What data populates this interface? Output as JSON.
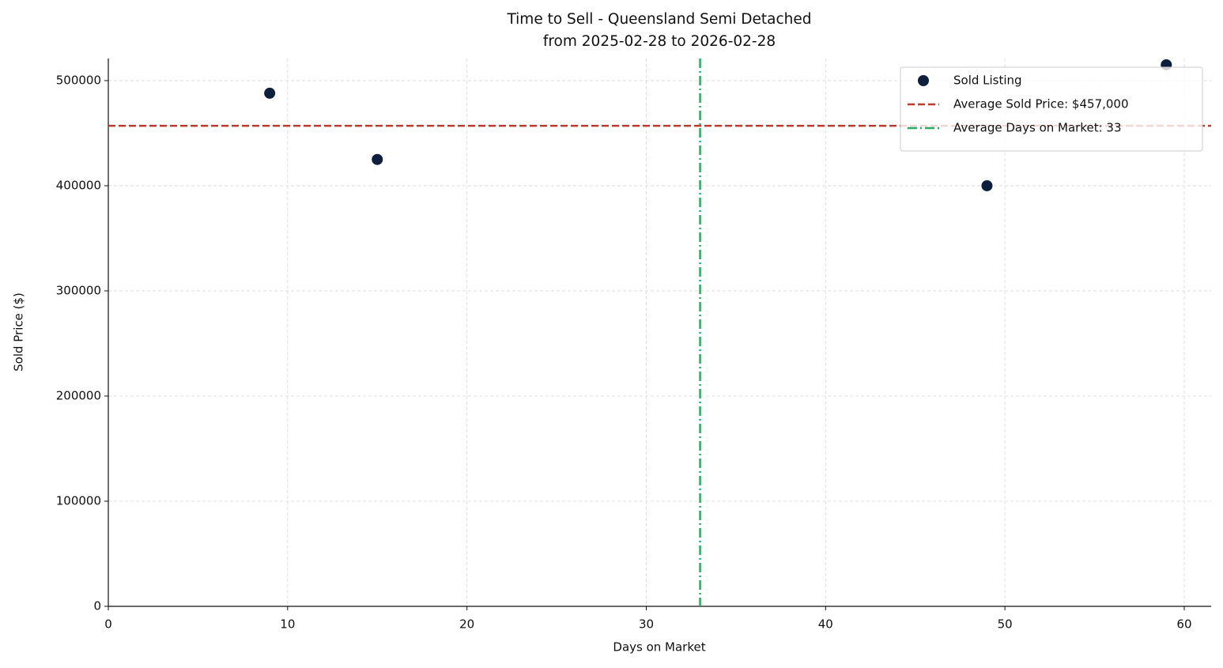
{
  "chart_data": {
    "type": "scatter",
    "title": "Time to Sell - Queensland Semi Detached",
    "subtitle": "from 2025-02-28 to 2026-02-28",
    "x_label": "Days on Market",
    "y_label": "Sold Price ($)",
    "series": [
      {
        "name": "Sold Listing",
        "color": "#0d1f3c",
        "x": [
          9,
          15,
          49,
          59
        ],
        "values": [
          488000,
          425000,
          400000,
          515000
        ]
      }
    ],
    "hlines": [
      {
        "value": 457000,
        "label": "Average Sold Price: $457,000",
        "color": "#c0392b",
        "style": "dashed"
      }
    ],
    "vlines": [
      {
        "value": 33,
        "label": "Average Days on Market: 33",
        "color": "#27ae60",
        "style": "dashdot"
      }
    ],
    "xlim": [
      0,
      61.5
    ],
    "xticks": [
      0,
      10,
      20,
      30,
      40,
      50,
      60
    ],
    "ylim": [
      0,
      521000
    ],
    "yticks": [
      0,
      100000,
      200000,
      300000,
      400000,
      500000
    ],
    "grid": true,
    "legend": "upper right"
  }
}
